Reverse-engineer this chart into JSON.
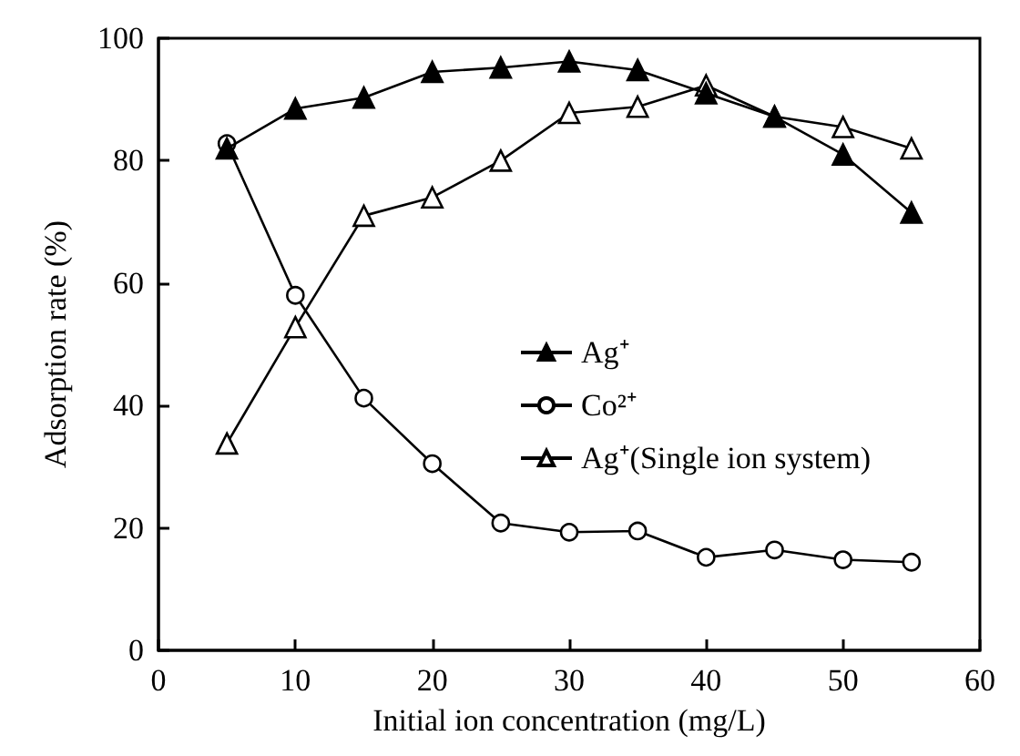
{
  "chart_data": {
    "type": "line",
    "xlabel": "Initial ion concentration (mg/L)",
    "ylabel": "Adsorption rate (%)",
    "x": [
      5,
      10,
      15,
      20,
      25,
      30,
      35,
      40,
      45,
      50,
      55
    ],
    "xlim": [
      0,
      60
    ],
    "xticks": [
      0,
      10,
      20,
      30,
      40,
      50,
      60
    ],
    "ylim": [
      0,
      100
    ],
    "yticks": [
      0,
      20,
      40,
      60,
      80,
      100
    ],
    "grid": false,
    "legend": "right",
    "line_style": "solid",
    "series": [
      {
        "name": "Ag⁺",
        "color": "#000000",
        "marker": "triangle",
        "values": [
          82,
          88.5,
          90.3,
          94.5,
          95.2,
          96.2,
          94.8,
          91,
          87.2,
          81,
          71.5
        ]
      },
      {
        "name": "Co²⁺",
        "color": "#000000",
        "marker": "circle",
        "values": [
          82.8,
          58,
          41.2,
          30.5,
          20.8,
          19.3,
          19.5,
          15.2,
          16.4,
          14.8,
          14.4
        ]
      },
      {
        "name": "Ag⁺(Single ion system)",
        "color": "#000000",
        "marker": "triangle",
        "values": [
          33.8,
          52.8,
          71,
          74,
          80,
          87.8,
          88.8,
          92.3,
          87.2,
          85.5,
          82
        ]
      }
    ]
  }
}
